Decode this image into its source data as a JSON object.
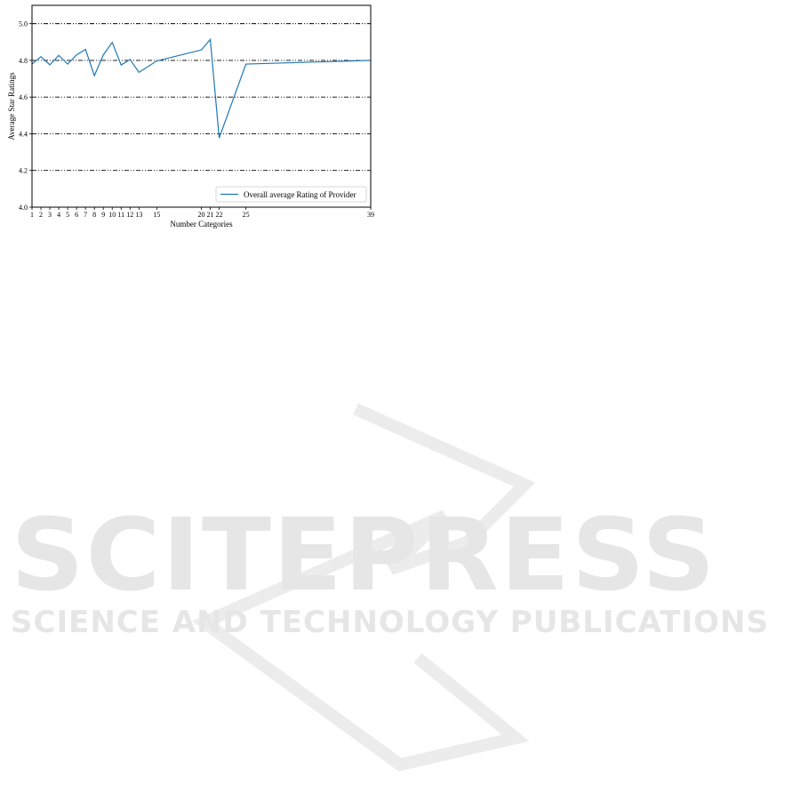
{
  "chart_data": {
    "type": "line",
    "title": "",
    "xlabel": "Number Categories",
    "ylabel": "Average Star Ratings",
    "xlim": [
      1,
      39
    ],
    "ylim": [
      4.0,
      5.1
    ],
    "x_ticks": [
      1,
      2,
      3,
      4,
      5,
      6,
      7,
      8,
      9,
      10,
      11,
      12,
      13,
      15,
      20,
      21,
      22,
      25,
      39
    ],
    "y_ticks": [
      "4.0",
      "4.2",
      "4.4",
      "4.6",
      "4.8",
      "5.0"
    ],
    "grid": "horizontal dash-dot",
    "legend_position": "bottom-right",
    "series": [
      {
        "name": "Overall average Rating of Provider",
        "color": "#1f77b4",
        "x": [
          1,
          2,
          3,
          4,
          5,
          6,
          7,
          8,
          9,
          10,
          11,
          12,
          13,
          15,
          20,
          21,
          22,
          25,
          39
        ],
        "y": [
          4.78,
          4.82,
          4.776,
          4.827,
          4.78,
          4.83,
          4.86,
          4.717,
          4.83,
          4.898,
          4.775,
          4.805,
          4.735,
          4.797,
          4.857,
          4.914,
          4.377,
          4.78,
          4.8
        ]
      }
    ]
  },
  "watermark": {
    "main": "SCITEPRESS",
    "sub": "SCIENCE AND TECHNOLOGY PUBLICATIONS"
  }
}
